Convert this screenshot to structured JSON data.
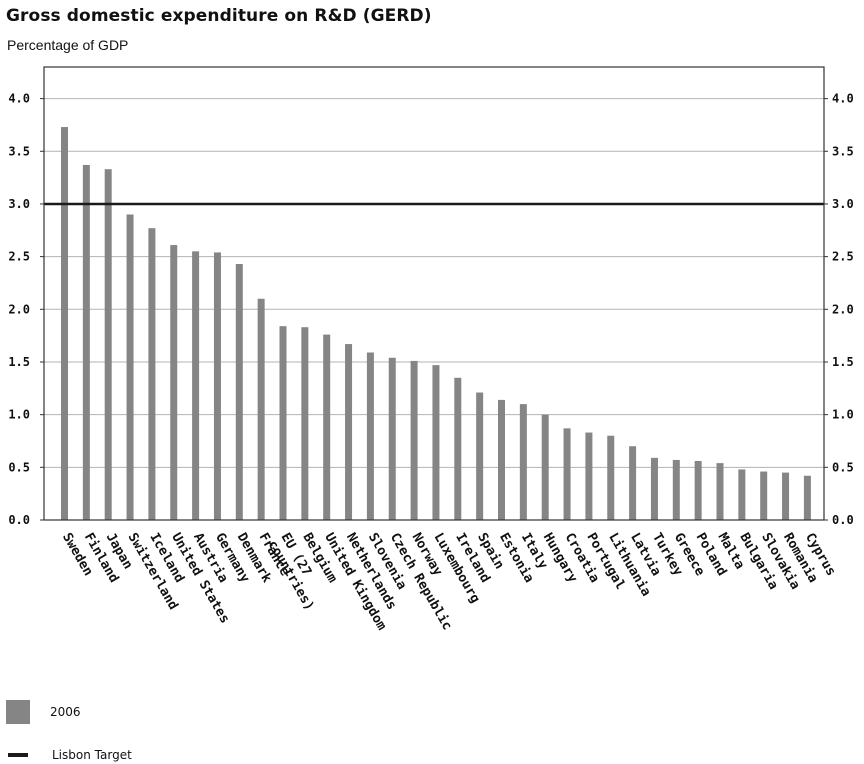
{
  "title": "Gross domestic expenditure on R&D (GERD)",
  "subtitle": "Percentage of GDP",
  "colors": {
    "bar": "#858585",
    "target_line": "#1a1a1a",
    "grid": "#b3b3b3",
    "frame": "#333333"
  },
  "legend": [
    {
      "label": "2006",
      "kind": "bar"
    },
    {
      "label": "Lisbon Target",
      "kind": "line"
    }
  ],
  "chart_data": {
    "type": "bar",
    "title": "Gross domestic expenditure on R&D (GERD)",
    "subtitle": "Percentage of GDP",
    "xlabel": "",
    "ylabel": "",
    "ylim": [
      0,
      4.3
    ],
    "yticks": [
      "0.0",
      "0.5",
      "1.0",
      "1.5",
      "2.0",
      "2.5",
      "3.0",
      "3.5",
      "4.0"
    ],
    "grid": true,
    "legend_position": "bottom-left",
    "categories": [
      "Sweden",
      "Finland",
      "Japan",
      "Switzerland",
      "Iceland",
      "United States",
      "Austria",
      "Germany",
      "Denmark",
      "France",
      "EU (27 countries)",
      "Belgium",
      "United Kingdom",
      "Netherlands",
      "Slovenia",
      "Czech Republic",
      "Norway",
      "Luxembourg",
      "Ireland",
      "Spain",
      "Estonia",
      "Italy",
      "Hungary",
      "Croatia",
      "Portugal",
      "Lithuania",
      "Latvia",
      "Turkey",
      "Greece",
      "Poland",
      "Malta",
      "Bulgaria",
      "Slovakia",
      "Romania",
      "Cyprus"
    ],
    "series": [
      {
        "name": "2006",
        "values": [
          3.73,
          3.37,
          3.33,
          2.9,
          2.77,
          2.61,
          2.55,
          2.54,
          2.43,
          2.1,
          1.84,
          1.83,
          1.76,
          1.67,
          1.59,
          1.54,
          1.51,
          1.47,
          1.35,
          1.21,
          1.14,
          1.1,
          1.0,
          0.87,
          0.83,
          0.8,
          0.7,
          0.59,
          0.57,
          0.56,
          0.54,
          0.48,
          0.46,
          0.45,
          0.42
        ]
      }
    ],
    "target_line": {
      "name": "Lisbon Target",
      "value": 3.0
    }
  }
}
